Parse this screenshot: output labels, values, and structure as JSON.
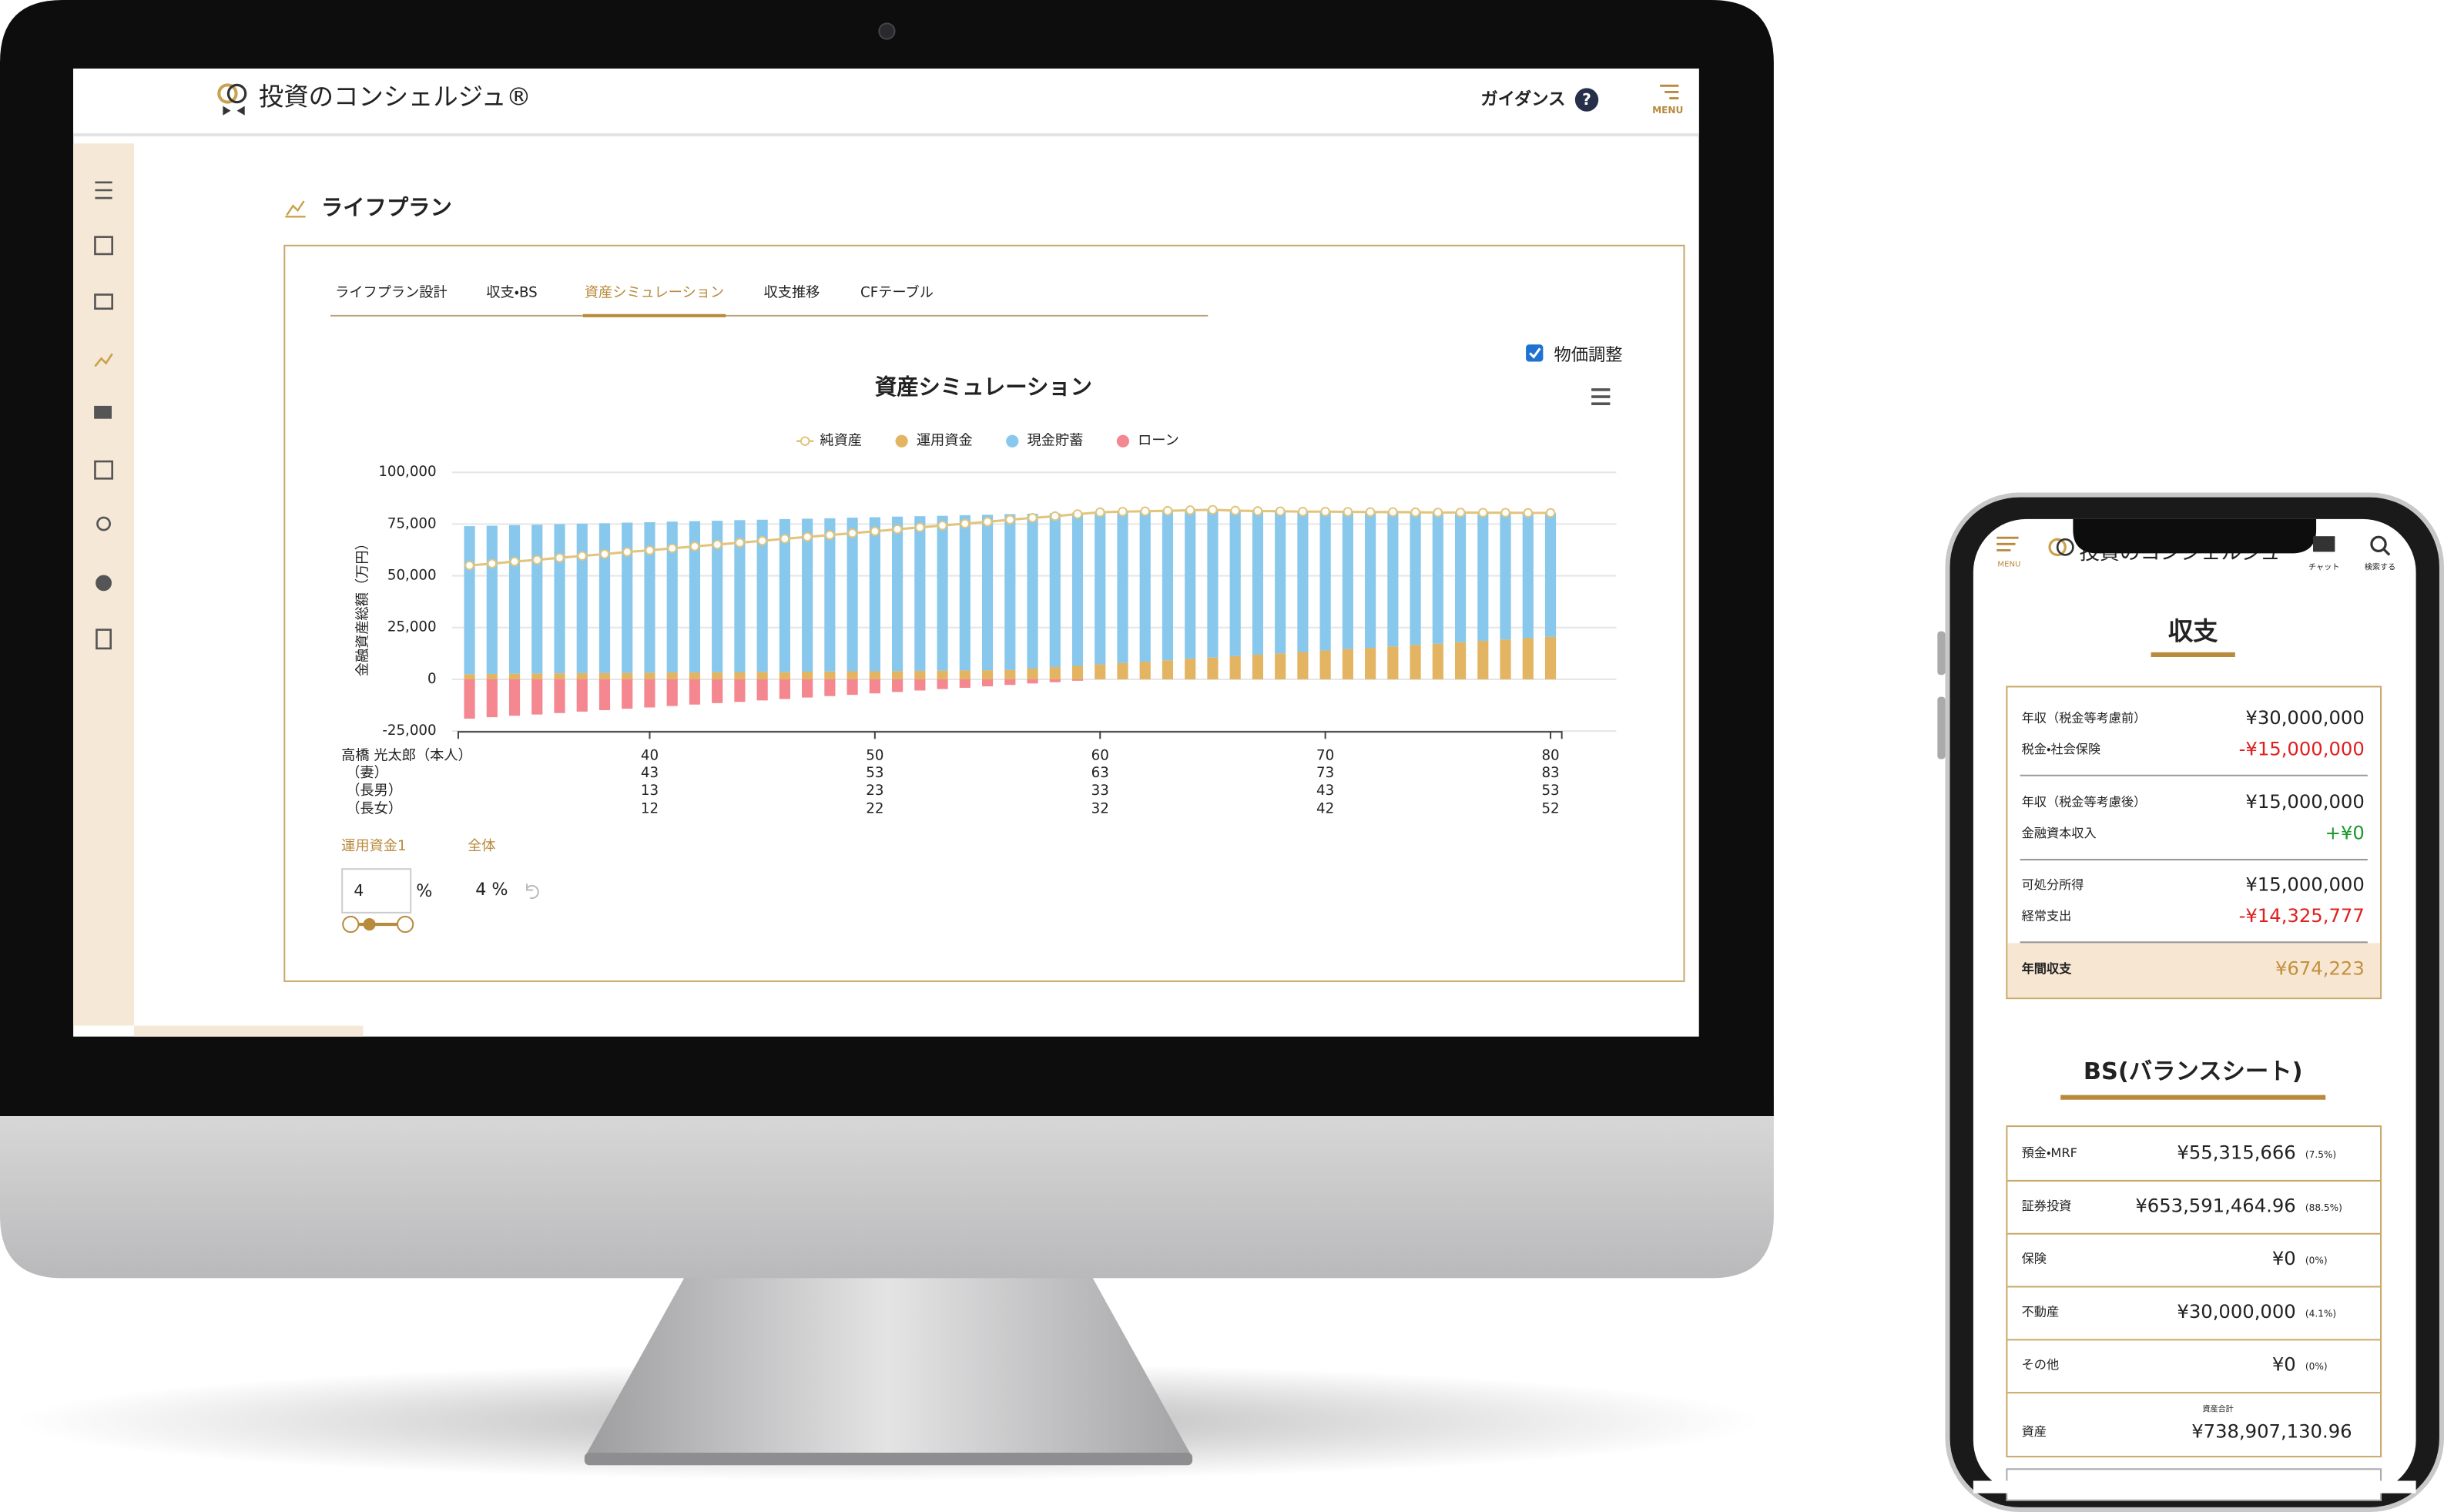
{
  "header": {
    "logo": "投資のコンシェルジュ®",
    "guidance": "ガイダンス",
    "help": "?",
    "menu": "MENU"
  },
  "page": {
    "title": "ライフプラン",
    "tabs": [
      "ライフプラン設計",
      "収支・BS",
      "資産シミュレーション",
      "収支推移",
      "CFテーブル"
    ],
    "checkbox": "物価調整"
  },
  "chart_data": {
    "type": "bar",
    "stacked": true,
    "title": "資産シミュレーション",
    "y_label": "金融資産総額（万円）",
    "x_label": "高橋 光太郎（本人）",
    "x": [
      32,
      33,
      34,
      35,
      36,
      37,
      38,
      39,
      40,
      41,
      42,
      43,
      44,
      45,
      46,
      47,
      48,
      49,
      50,
      51,
      52,
      53,
      54,
      55,
      56,
      57,
      58,
      59,
      60,
      61,
      62,
      63,
      64,
      65,
      66,
      67,
      68,
      69,
      70,
      71,
      72,
      73,
      74,
      75,
      76,
      77,
      78,
      79,
      80
    ],
    "xlim": [
      31.5,
      80.5
    ],
    "xticks": [
      40,
      50,
      60,
      70,
      80
    ],
    "x_label_rows": [
      {
        "name": "（妻）",
        "values": [
          43,
          53,
          63,
          73,
          83
        ]
      },
      {
        "name": "（長男）",
        "values": [
          13,
          23,
          33,
          43,
          53
        ]
      },
      {
        "name": "（長女）",
        "values": [
          12,
          22,
          32,
          42,
          52
        ]
      }
    ],
    "ylim": [
      -25000,
      100000
    ],
    "yticks": [
      {
        "value": -25000,
        "label": "-25,000"
      },
      0,
      {
        "value": 25000,
        "label": "25,000"
      },
      {
        "value": 50000,
        "label": "50,000"
      },
      {
        "value": 75000,
        "label": "75,000"
      },
      {
        "value": 100000,
        "label": "100,000"
      }
    ],
    "grid": true,
    "series": [
      {
        "name": "純資産",
        "type": "line",
        "color": "#e2c47c",
        "values": [
          55000,
          55900,
          56900,
          57700,
          58700,
          59600,
          60500,
          61500,
          62300,
          63300,
          64200,
          65100,
          66000,
          66900,
          67900,
          68800,
          69700,
          70600,
          71500,
          72500,
          73400,
          74300,
          75200,
          76100,
          77100,
          78000,
          78800,
          79800,
          80700,
          81000,
          81200,
          81400,
          81700,
          81900,
          81500,
          81300,
          81200,
          81000,
          81000,
          80900,
          80800,
          80800,
          80700,
          80600,
          80600,
          80500,
          80500,
          80400,
          80400
        ]
      },
      {
        "name": "運用資金",
        "color": "#e3b462",
        "values": [
          2500,
          2600,
          2700,
          2800,
          2900,
          3000,
          3000,
          3100,
          3200,
          3300,
          3300,
          3400,
          3500,
          3600,
          3600,
          3700,
          3800,
          3900,
          3900,
          4000,
          4100,
          4200,
          4300,
          4400,
          4500,
          5200,
          5900,
          6500,
          7200,
          7900,
          8500,
          9200,
          9900,
          10500,
          11200,
          11900,
          12500,
          13200,
          13900,
          14600,
          15200,
          15900,
          16600,
          17200,
          17900,
          18600,
          19200,
          19900,
          20500
        ]
      },
      {
        "name": "現金貯蓄",
        "color": "#88c8ec",
        "values": [
          71500,
          71600,
          71800,
          71900,
          72100,
          72200,
          72400,
          72600,
          72700,
          72900,
          73100,
          73200,
          73400,
          73500,
          73800,
          73900,
          74000,
          74200,
          74400,
          74600,
          74700,
          74800,
          75000,
          75100,
          75300,
          74800,
          74300,
          74000,
          73500,
          73100,
          72700,
          72200,
          71800,
          71400,
          70300,
          69400,
          68700,
          67800,
          67100,
          66300,
          65600,
          64900,
          64100,
          63400,
          62700,
          61900,
          61300,
          60500,
          59900
        ]
      },
      {
        "name": "ローン",
        "color": "#f4878f",
        "values": [
          -19000,
          -18300,
          -17600,
          -17000,
          -16300,
          -15600,
          -14900,
          -14200,
          -13600,
          -12900,
          -12200,
          -11500,
          -10900,
          -10200,
          -9500,
          -8800,
          -8100,
          -7500,
          -6800,
          -6100,
          -5400,
          -4700,
          -4100,
          -3400,
          -2700,
          -2000,
          -1400,
          -700,
          0,
          0,
          0,
          0,
          0,
          0,
          0,
          0,
          0,
          0,
          0,
          0,
          0,
          0,
          0,
          0,
          0,
          0,
          0,
          0,
          0
        ]
      }
    ]
  },
  "controls": {
    "fund_label": "運用資金1",
    "all_label": "全体",
    "input": "4",
    "unit": "%",
    "overall": "4 %"
  },
  "phone": {
    "menu": "MENU",
    "logo": "投資のコンシェルジュ",
    "chat": "チャット",
    "search": "検索する",
    "income_title": "収支",
    "income_rows": [
      {
        "label": "年収（税金等考慮前）",
        "value": "¥30,000,000"
      },
      {
        "label": "税金・社会保険",
        "value": "-¥15,000,000"
      },
      {
        "label": "年収（税金等考慮後）",
        "value": "¥15,000,000"
      },
      {
        "label": "金融資本収入",
        "value": "+¥0"
      },
      {
        "label": "可処分所得",
        "value": "¥15,000,000"
      },
      {
        "label": "経常支出",
        "value": "-¥14,325,777"
      }
    ],
    "income_total": {
      "label": "年間収支",
      "value": "¥674,223"
    },
    "bs_title": "BS(バランスシート)",
    "bs_rows": [
      {
        "label": "預金・MRF",
        "value": "¥55,315,666",
        "share": "(7.5%)"
      },
      {
        "label": "証券投資",
        "value": "¥653,591,464.96",
        "share": "(88.5%)"
      },
      {
        "label": "保険",
        "value": "¥0",
        "share": "(0%)"
      },
      {
        "label": "不動産",
        "value": "¥30,000,000",
        "share": "(4.1%)"
      },
      {
        "label": "その他",
        "value": "¥0",
        "share": "(0%)"
      }
    ],
    "bs_total": {
      "caption": "資産合計",
      "label": "資産",
      "value": "¥738,907,130.96"
    }
  }
}
